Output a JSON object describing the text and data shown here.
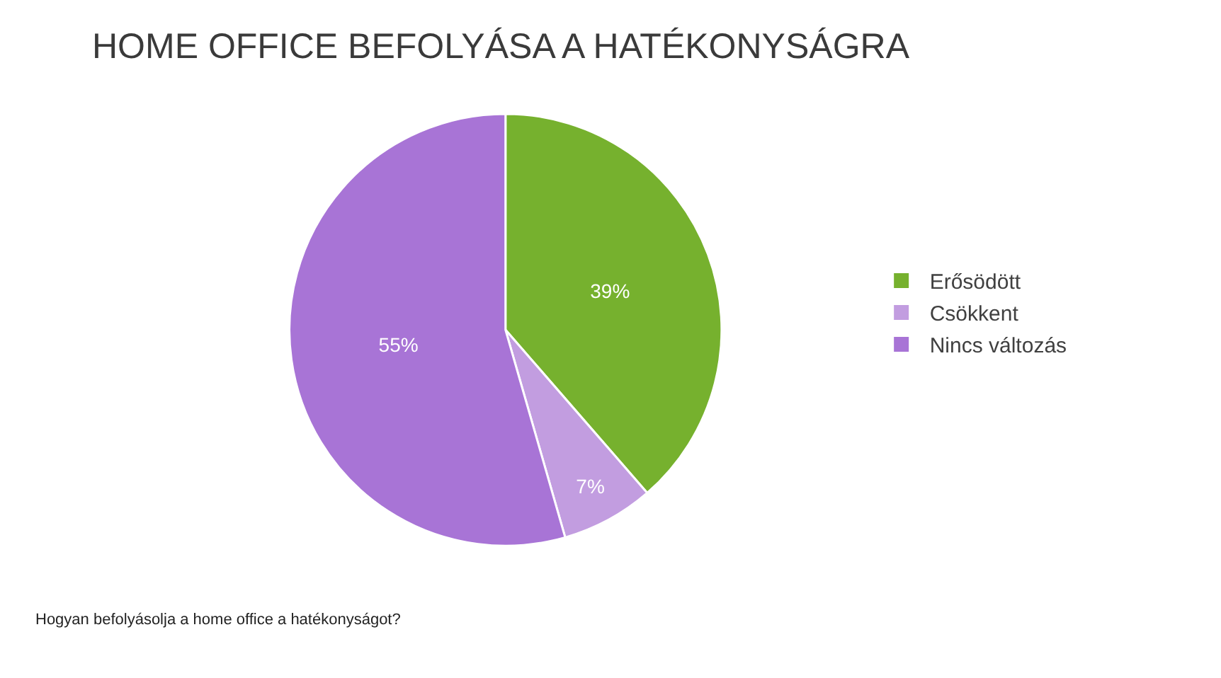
{
  "chart_data": {
    "type": "pie",
    "title": "HOME OFFICE BEFOLYÁSA A HATÉKONYSÁGRA",
    "categories": [
      "Erősödött",
      "Csökkent",
      "Nincs változás"
    ],
    "values": [
      39,
      7,
      55
    ],
    "value_labels": [
      "39%",
      "7%",
      "55%"
    ],
    "colors": [
      "#76b12e",
      "#c29de0",
      "#a874d6"
    ],
    "legend": "right",
    "annotations": [
      "Hogyan befolyásolja a home office a hatékonyságot?"
    ]
  }
}
